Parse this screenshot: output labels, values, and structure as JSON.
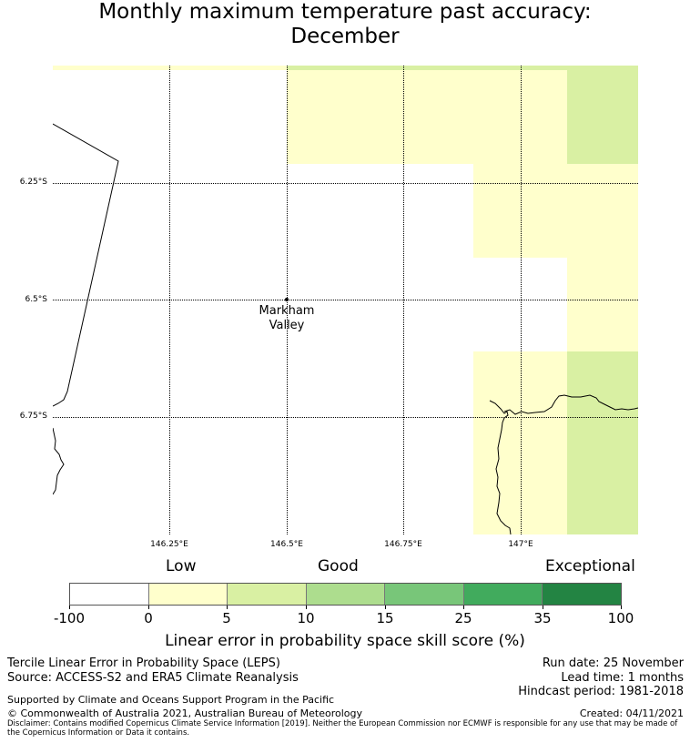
{
  "title_line1": "Monthly maximum temperature past accuracy:",
  "title_line2": "December",
  "map": {
    "lat_labels": [
      "6.25°S",
      "6.5°S",
      "6.75°S"
    ],
    "lon_labels": [
      "146.25°E",
      "146.5°E",
      "146.75°E",
      "147°E"
    ],
    "place": {
      "line1": "Markham",
      "line2": "Valley"
    }
  },
  "colorbar": {
    "category_labels": {
      "low": "Low",
      "good": "Good",
      "exceptional": "Exceptional"
    },
    "ticks": [
      "-100",
      "0",
      "5",
      "10",
      "15",
      "25",
      "35",
      "100"
    ],
    "colors": [
      "#ffffff",
      "#ffffcc",
      "#d9f0a3",
      "#addd8e",
      "#78c679",
      "#41ab5d",
      "#238443"
    ],
    "title": "Linear error in probability space skill score (%)"
  },
  "info": {
    "left_line1": "Tercile Linear Error in Probability Space (LEPS)",
    "left_line2": "Source: ACCESS-S2 and ERA5 Climate Reanalysis",
    "run_date": "Run date: 25 November",
    "lead_time": "Lead time: 1 months",
    "hindcast": "Hindcast period: 1981-2018",
    "supported": "Supported by Climate and Oceans Support Program in the Pacific",
    "copyright": "© Commonwealth of Australia 2021, Australian Bureau of Meteorology",
    "created": "Created: 04/11/2021",
    "disclaimer": "Disclaimer: Contains modified Copernicus Climate Service Information [2019]. Neither the European Commission nor ECMWF is responsible for any use that may be made of the Copernicus Information or Data it contains."
  }
}
